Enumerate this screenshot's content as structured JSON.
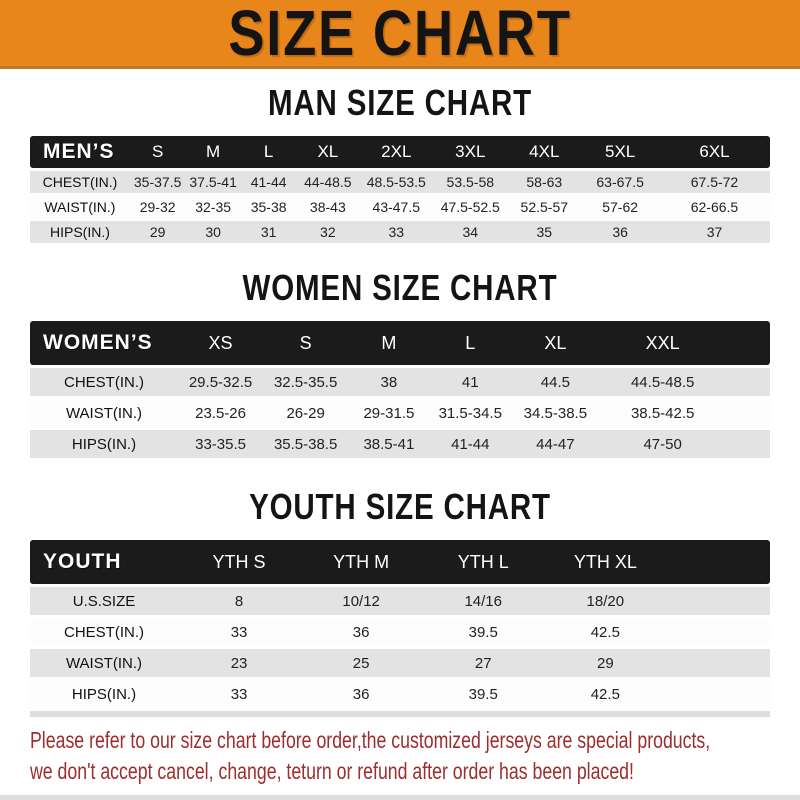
{
  "banner": {
    "title": "SIZE CHART"
  },
  "chart_data": [
    {
      "type": "table",
      "title": "MAN SIZE CHART",
      "header_label": "MEN’S",
      "columns": [
        "S",
        "M",
        "L",
        "XL",
        "2XL",
        "3XL",
        "4XL",
        "5XL",
        "6XL"
      ],
      "rows": [
        {
          "label": "CHEST(IN.)",
          "values": [
            "35-37.5",
            "37.5-41",
            "41-44",
            "44-48.5",
            "48.5-53.5",
            "53.5-58",
            "58-63",
            "63-67.5",
            "67.5-72"
          ]
        },
        {
          "label": "WAIST(IN.)",
          "values": [
            "29-32",
            "32-35",
            "35-38",
            "38-43",
            "43-47.5",
            "47.5-52.5",
            "52.5-57",
            "57-62",
            "62-66.5"
          ]
        },
        {
          "label": "HIPS(IN.)",
          "values": [
            "29",
            "30",
            "31",
            "32",
            "33",
            "34",
            "35",
            "36",
            "37"
          ]
        }
      ],
      "col_widths": [
        "13.5%",
        "7.5%",
        "7.5%",
        "7.5%",
        "8.5%",
        "10%",
        "10%",
        "10%",
        "10.5%",
        "15%"
      ]
    },
    {
      "type": "table",
      "title": "WOMEN SIZE CHART",
      "header_label": "WOMEN’S",
      "columns": [
        "XS",
        "S",
        "M",
        "L",
        "XL",
        "XXL"
      ],
      "rows": [
        {
          "label": "CHEST(IN.)",
          "values": [
            "29.5-32.5",
            "32.5-35.5",
            "38",
            "41",
            "44.5",
            "44.5-48.5"
          ]
        },
        {
          "label": "WAIST(IN.)",
          "values": [
            "23.5-26",
            "26-29",
            "29-31.5",
            "31.5-34.5",
            "34.5-38.5",
            "38.5-42.5"
          ]
        },
        {
          "label": "HIPS(IN.)",
          "values": [
            "33-35.5",
            "35.5-38.5",
            "38.5-41",
            "41-44",
            "44-47",
            "47-50"
          ]
        }
      ],
      "col_widths": [
        "20%",
        "11.5%",
        "11.5%",
        "11%",
        "11%",
        "12%",
        "17%",
        "6%"
      ]
    },
    {
      "type": "table",
      "title": "YOUTH SIZE CHART",
      "header_label": "YOUTH",
      "columns": [
        "YTH S",
        "YTH M",
        "YTH L",
        "YTH XL"
      ],
      "rows": [
        {
          "label": "U.S.SIZE",
          "values": [
            "8",
            "10/12",
            "14/16",
            "18/20"
          ]
        },
        {
          "label": "CHEST(IN.)",
          "values": [
            "33",
            "36",
            "39.5",
            "42.5"
          ]
        },
        {
          "label": "WAIST(IN.)",
          "values": [
            "23",
            "25",
            "27",
            "29"
          ]
        },
        {
          "label": "HIPS(IN.)",
          "values": [
            "33",
            "36",
            "39.5",
            "42.5"
          ]
        }
      ],
      "col_widths": [
        "20%",
        "16.5%",
        "16.5%",
        "16.5%",
        "16.5%",
        "14%"
      ]
    }
  ],
  "footer": {
    "lines": [
      "Please refer to our size chart before order,the customized jerseys are special products,",
      "we don't accept cancel, change, teturn or refund after order has been placed!"
    ]
  },
  "colors": {
    "banner_orange": "#e8861c",
    "banner_border": "#bd7a26",
    "header_black": "#1b1b1b",
    "row_gray": "#e3e3e3",
    "notice_red": "#9e2d2d"
  }
}
